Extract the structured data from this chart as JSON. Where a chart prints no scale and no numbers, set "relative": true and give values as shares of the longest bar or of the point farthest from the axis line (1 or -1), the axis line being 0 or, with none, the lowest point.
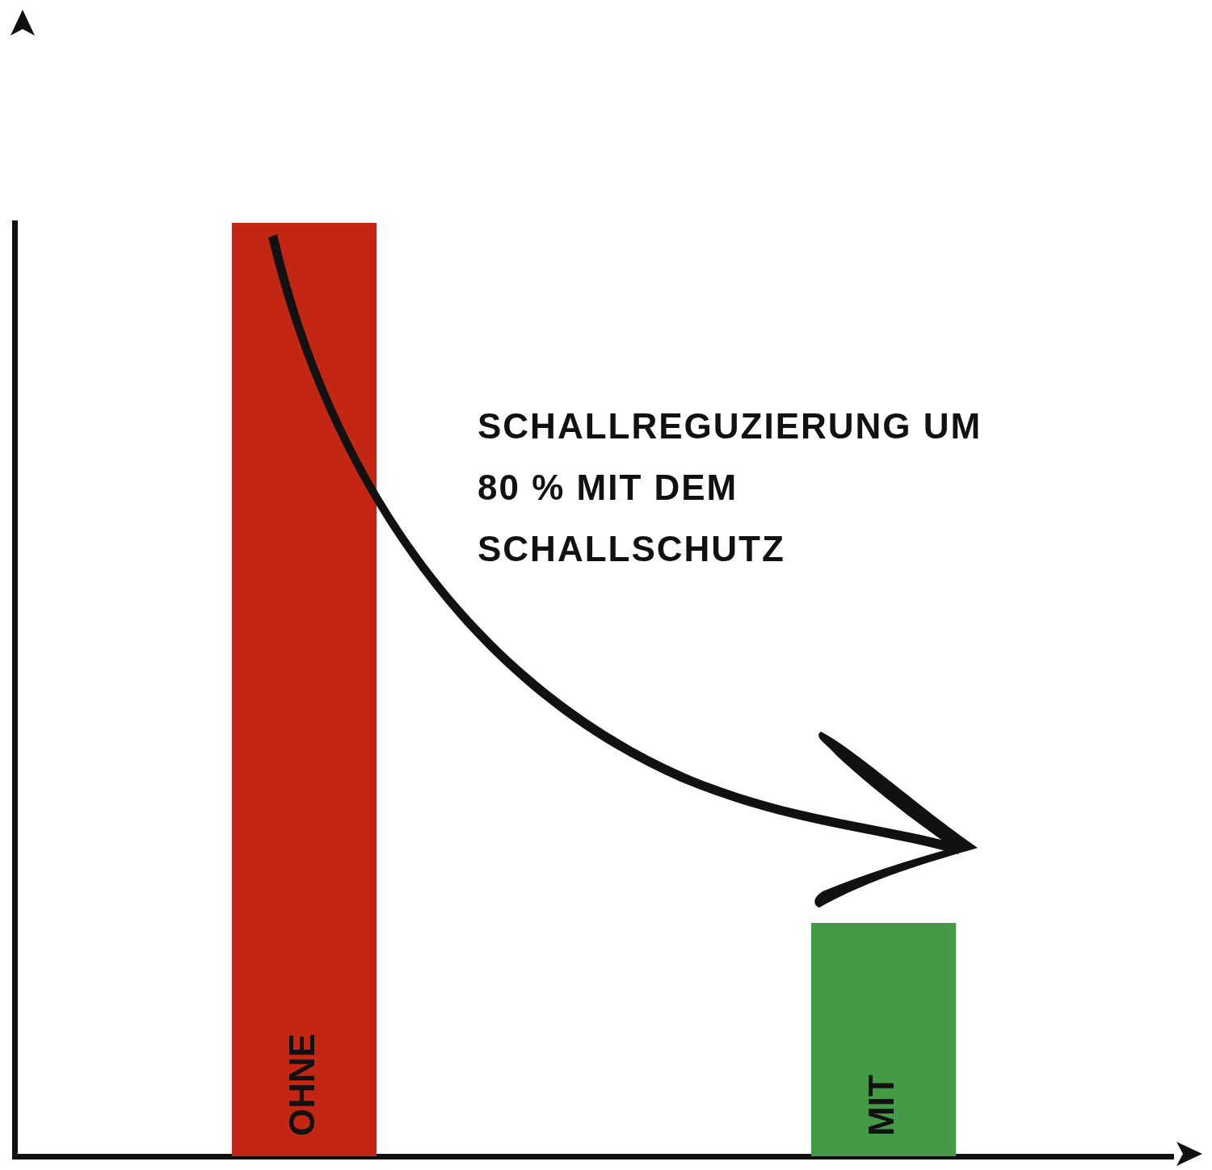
{
  "chart_data": {
    "type": "bar",
    "relative": true,
    "categories": [
      "OHNE",
      "MIT"
    ],
    "colors": [
      "#c42614",
      "#459a47"
    ],
    "values": [
      1,
      0.25
    ],
    "annotations": [
      "SCHALLREGUZIERUNG UM 80 % MIT DEM SCHALLSCHUTZ"
    ],
    "legend": false,
    "grid": false
  }
}
